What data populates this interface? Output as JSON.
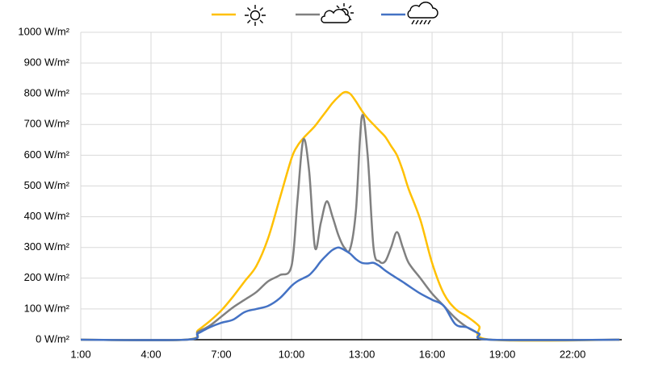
{
  "chart_data": {
    "type": "line",
    "x": [
      1,
      5.5,
      6,
      6.5,
      7,
      7.5,
      8,
      8.5,
      9,
      9.5,
      10,
      10.25,
      10.5,
      10.75,
      11,
      11.25,
      11.5,
      11.75,
      12,
      12.25,
      12.5,
      12.75,
      13,
      13.25,
      13.5,
      13.75,
      14,
      14.25,
      14.5,
      14.75,
      15,
      15.5,
      16,
      16.5,
      17,
      17.5,
      18,
      18.5,
      24
    ],
    "series": [
      {
        "color": "#FFC000",
        "values": [
          0,
          0,
          30,
          60,
          95,
          140,
          190,
          240,
          330,
          460,
          590,
          630,
          655,
          675,
          695,
          720,
          745,
          770,
          790,
          805,
          800,
          775,
          745,
          720,
          700,
          680,
          660,
          630,
          600,
          550,
          490,
          390,
          250,
          150,
          100,
          75,
          45,
          0,
          0
        ]
      },
      {
        "color": "#808080",
        "values": [
          0,
          0,
          25,
          45,
          75,
          105,
          130,
          155,
          190,
          210,
          240,
          450,
          650,
          550,
          300,
          380,
          450,
          400,
          340,
          300,
          295,
          420,
          725,
          600,
          300,
          255,
          255,
          300,
          350,
          300,
          250,
          200,
          150,
          110,
          70,
          40,
          20,
          0,
          0
        ]
      },
      {
        "color": "#4472C4",
        "values": [
          0,
          0,
          20,
          40,
          55,
          65,
          90,
          100,
          110,
          135,
          175,
          190,
          200,
          210,
          230,
          255,
          275,
          292,
          300,
          292,
          280,
          262,
          250,
          248,
          250,
          240,
          225,
          212,
          200,
          188,
          175,
          150,
          130,
          110,
          50,
          40,
          20,
          0,
          0
        ]
      }
    ],
    "xlim": [
      1,
      24.1
    ],
    "xticks": [
      {
        "value": 1,
        "label": "1:00"
      },
      {
        "value": 4,
        "label": "4:00"
      },
      {
        "value": 7,
        "label": "7:00"
      },
      {
        "value": 10,
        "label": "10:00"
      },
      {
        "value": 13,
        "label": "13:00"
      },
      {
        "value": 16,
        "label": "16:00"
      },
      {
        "value": 19,
        "label": "19:00"
      },
      {
        "value": 22,
        "label": "22:00"
      }
    ],
    "ylim": [
      0,
      1000
    ],
    "yticks": [
      {
        "value": 0,
        "label": "0 W/m²"
      },
      {
        "value": 100,
        "label": "100 W/m²"
      },
      {
        "value": 200,
        "label": "200 W/m²"
      },
      {
        "value": 300,
        "label": "300 W/m²"
      },
      {
        "value": 400,
        "label": "400 W/m²"
      },
      {
        "value": 500,
        "label": "500 W/m²"
      },
      {
        "value": 600,
        "label": "600 W/m²"
      },
      {
        "value": 700,
        "label": "700 W/m²"
      },
      {
        "value": 800,
        "label": "800 W/m²"
      },
      {
        "value": 900,
        "label": "900 W/m²"
      },
      {
        "value": 1000,
        "label": "1000 W/m²"
      }
    ],
    "grid": true
  }
}
